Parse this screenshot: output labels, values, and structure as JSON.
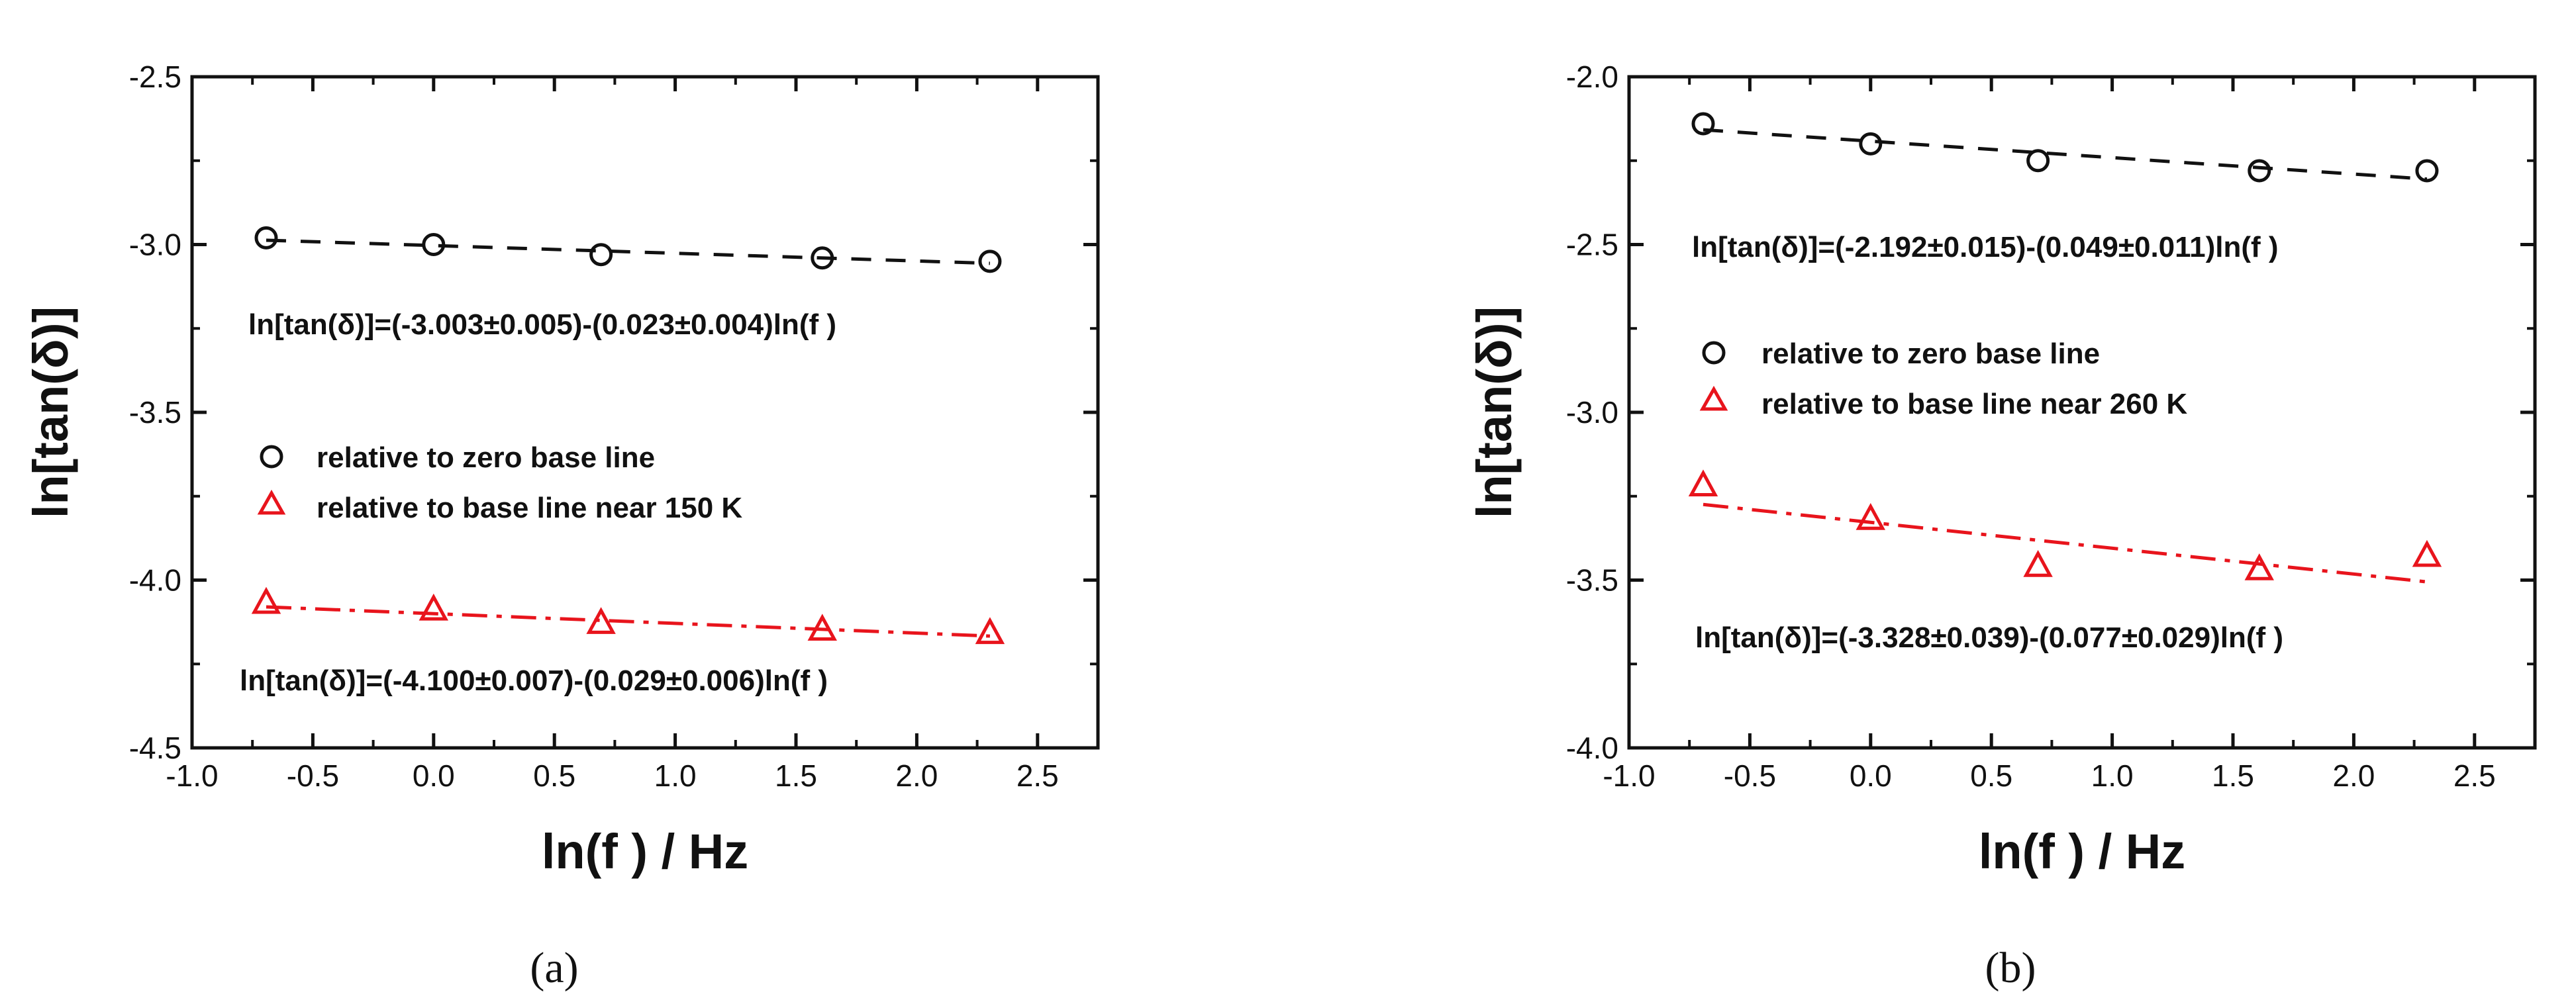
{
  "panels": [
    {
      "label": "(a)",
      "equation_black": "ln[tan(δ)]=(-3.003±0.005)-(0.023±0.004)ln(f )",
      "equation_red": "ln[tan(δ)]=(-4.100±0.007)-(0.029±0.006)ln(f )"
    },
    {
      "label": "(b)",
      "equation_black": "ln[tan(δ)]=(-2.192±0.015)-(0.049±0.011)ln(f )",
      "equation_red": "ln[tan(δ)]=(-3.328±0.039)-(0.077±0.029)ln(f )"
    }
  ],
  "colors": {
    "black_series": "#111111",
    "red_series": "#e8141c"
  },
  "chart_data": [
    {
      "type": "scatter",
      "xlabel": "ln(f ) / Hz",
      "ylabel": "ln[tan(δ)]",
      "xlim": [
        -1.0,
        2.75
      ],
      "ylim": [
        -4.5,
        -2.5
      ],
      "xticks": [
        -1.0,
        -0.5,
        0.0,
        0.5,
        1.0,
        1.5,
        2.0,
        2.5
      ],
      "xtick_labels": [
        "-1.0",
        "-0.5",
        "0.0",
        "0.5",
        "1.0",
        "1.5",
        "2.0",
        "2.5"
      ],
      "yticks": [
        -4.5,
        -4.0,
        -3.5,
        -3.0,
        -2.5
      ],
      "ytick_labels": [
        "-4.5",
        "-4.0",
        "-3.5",
        "-3.0",
        "-2.5"
      ],
      "legend_position": "middle-left",
      "series": [
        {
          "name": "relative to zero base line",
          "marker": "circle",
          "color": "#111111",
          "x": [
            -0.693,
            0.0,
            0.693,
            1.609,
            2.303
          ],
          "y": [
            -2.98,
            -3.0,
            -3.03,
            -3.04,
            -3.05
          ],
          "fit": {
            "intercept": -3.003,
            "slope": -0.023,
            "style": "dashed"
          }
        },
        {
          "name": "relative to base line near 150 K",
          "marker": "triangle",
          "color": "#e8141c",
          "x": [
            -0.693,
            0.0,
            0.693,
            1.609,
            2.303
          ],
          "y": [
            -4.07,
            -4.09,
            -4.13,
            -4.15,
            -4.16
          ],
          "fit": {
            "intercept": -4.1,
            "slope": -0.029,
            "style": "dashdot"
          }
        }
      ]
    },
    {
      "type": "scatter",
      "xlabel": "ln(f ) / Hz",
      "ylabel": "ln[tan(δ)]",
      "xlim": [
        -1.0,
        2.75
      ],
      "ylim": [
        -4.0,
        -2.0
      ],
      "xticks": [
        -1.0,
        -0.5,
        0.0,
        0.5,
        1.0,
        1.5,
        2.0,
        2.5
      ],
      "xtick_labels": [
        "-1.0",
        "-0.5",
        "0.0",
        "0.5",
        "1.0",
        "1.5",
        "2.0",
        "2.5"
      ],
      "yticks": [
        -4.0,
        -3.5,
        -3.0,
        -2.5,
        -2.0
      ],
      "ytick_labels": [
        "-4.0",
        "-3.5",
        "-3.0",
        "-2.5",
        "-2.0"
      ],
      "legend_position": "upper-left",
      "series": [
        {
          "name": "relative to zero base line",
          "marker": "circle",
          "color": "#111111",
          "x": [
            -0.693,
            0.0,
            0.693,
            1.609,
            2.303
          ],
          "y": [
            -2.14,
            -2.2,
            -2.25,
            -2.28,
            -2.28
          ],
          "fit": {
            "intercept": -2.192,
            "slope": -0.049,
            "style": "dashed"
          }
        },
        {
          "name": "relative to base line near 260 K",
          "marker": "triangle",
          "color": "#e8141c",
          "x": [
            -0.693,
            0.0,
            0.693,
            1.609,
            2.303
          ],
          "y": [
            -3.22,
            -3.32,
            -3.46,
            -3.47,
            -3.43
          ],
          "fit": {
            "intercept": -3.328,
            "slope": -0.077,
            "style": "dashdot"
          }
        }
      ]
    }
  ]
}
